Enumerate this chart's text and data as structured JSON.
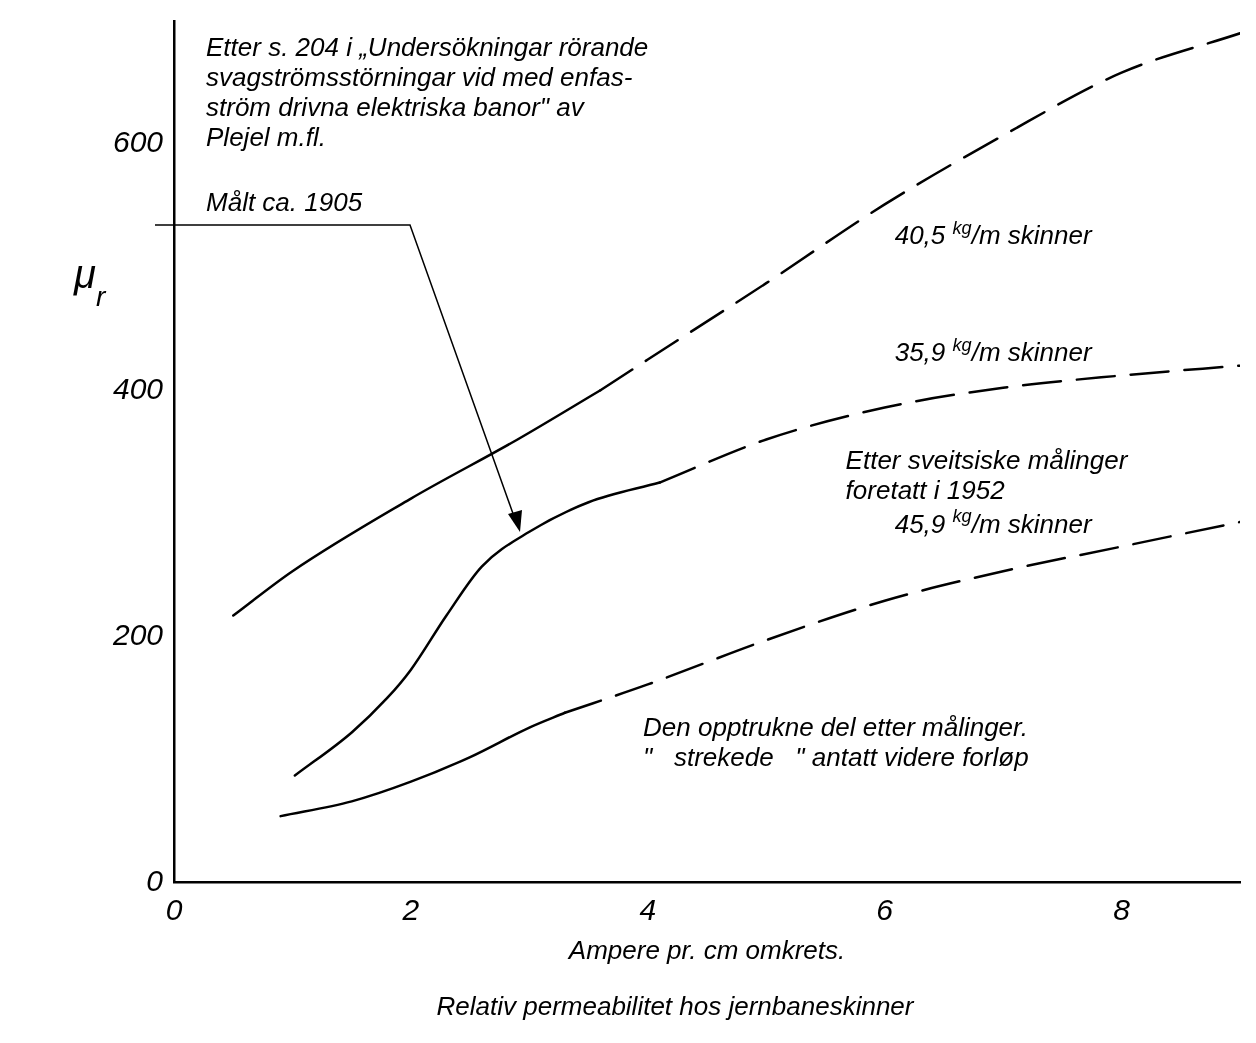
{
  "chart_data": {
    "type": "line",
    "title": "Relativ permeabilitet hos jernbaneskinner",
    "xlabel": "Ampere pr. cm omkrets.",
    "ylabel": "μ$_{r}$",
    "xlim": [
      0,
      9
    ],
    "ylim": [
      0,
      700
    ],
    "xticks": [
      0,
      2,
      4,
      6,
      8
    ],
    "yticks": [
      0,
      200,
      400,
      600
    ],
    "grid": false,
    "legend": false,
    "marker": "none",
    "annotations": [
      "Etter s. 204 i „Undersökningar rörande\nsvagströmsstörningar vid med enfas-\nström drivna elektriska banor\" av\nPlejel m.fl.",
      "Målt ca. 1905",
      "Etter sveitsiske målinger\nforetatt i 1952",
      "Den opptrukne del etter målinger.\n\"   strekede   \" antatt videre forløp"
    ],
    "series": [
      {
        "type": "line",
        "line_style": "solid",
        "color": "#000000",
        "x": [
          0.5,
          1,
          2,
          2.9,
          3.6
        ],
        "values": [
          217,
          253,
          312,
          360,
          400
        ]
      },
      {
        "type": "line",
        "line_style": "dashed",
        "color": "#000000",
        "name": "40,5 $^{kg}$/m skinner",
        "x": [
          3.6,
          4,
          5,
          6,
          7,
          8,
          9
        ],
        "values": [
          400,
          425,
          487,
          551,
          607,
          658,
          690
        ]
      },
      {
        "type": "line",
        "line_style": "solid",
        "color": "#000000",
        "x": [
          1.02,
          1.5,
          1.8,
          2,
          2.3,
          2.6,
          3,
          3.5,
          4.1
        ],
        "values": [
          87,
          122,
          150,
          173,
          217,
          257,
          285,
          309,
          325
        ]
      },
      {
        "type": "line",
        "line_style": "dashed",
        "color": "#000000",
        "name": "35,9 $^{kg}$/m skinner",
        "x": [
          4.1,
          5,
          6,
          7,
          8,
          9
        ],
        "values": [
          325,
          360,
          386,
          402,
          412,
          420
        ]
      },
      {
        "type": "line",
        "line_style": "solid",
        "color": "#000000",
        "x": [
          0.9,
          1.5,
          2,
          2.5,
          3,
          3.3
        ],
        "values": [
          54,
          66,
          82,
          102,
          126,
          138
        ]
      },
      {
        "type": "line",
        "line_style": "dashed",
        "color": "#000000",
        "name": "45,9 $^{kg}$/m skinner",
        "x": [
          3.3,
          4,
          5,
          6,
          7,
          8,
          9
        ],
        "values": [
          138,
          161,
          197,
          229,
          253,
          273,
          293
        ]
      }
    ]
  }
}
